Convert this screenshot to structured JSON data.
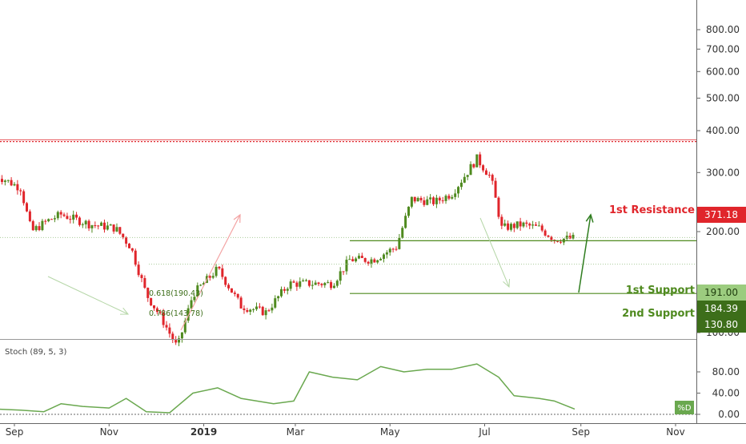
{
  "chart_data": {
    "type": "candlestick",
    "main_pane": {
      "y_axis": {
        "scale": "log",
        "ticks": [
          100,
          200,
          300,
          400,
          500,
          600,
          700,
          800
        ],
        "tick_labels": [
          "100.00",
          "200.00",
          "300.00",
          "400.00",
          "500.00",
          "600.00",
          "700.00",
          "800.00"
        ]
      },
      "price_series_approx": [
        [
          "2018-08-20",
          295
        ],
        [
          "2018-09-05",
          270
        ],
        [
          "2018-09-12",
          200
        ],
        [
          "2018-09-22",
          215
        ],
        [
          "2018-10-01",
          225
        ],
        [
          "2018-10-20",
          210
        ],
        [
          "2018-11-05",
          205
        ],
        [
          "2018-11-15",
          180
        ],
        [
          "2018-11-25",
          130
        ],
        [
          "2018-12-05",
          110
        ],
        [
          "2018-12-15",
          90
        ],
        [
          "2018-12-25",
          130
        ],
        [
          "2019-01-10",
          155
        ],
        [
          "2019-01-25",
          120
        ],
        [
          "2019-02-10",
          115
        ],
        [
          "2019-02-25",
          140
        ],
        [
          "2019-03-10",
          140
        ],
        [
          "2019-03-25",
          140
        ],
        [
          "2019-04-05",
          165
        ],
        [
          "2019-04-20",
          165
        ],
        [
          "2019-05-05",
          180
        ],
        [
          "2019-05-15",
          250
        ],
        [
          "2019-05-30",
          245
        ],
        [
          "2019-06-10",
          260
        ],
        [
          "2019-06-26",
          330
        ],
        [
          "2019-07-05",
          290
        ],
        [
          "2019-07-12",
          205
        ],
        [
          "2019-07-25",
          210
        ],
        [
          "2019-08-05",
          205
        ],
        [
          "2019-08-15",
          190
        ],
        [
          "2019-08-28",
          191
        ]
      ],
      "fib_labels": [
        "0.618(190.43)",
        "0.786(143.78)"
      ],
      "horizontal_levels": [
        {
          "label": "1st Resistance",
          "value": 371.18,
          "value_label": "371.18",
          "color": "#e0252b"
        },
        {
          "label": "1st Support",
          "value": 191.0,
          "value_label": "191.00",
          "color": "#4f8a1f"
        },
        {
          "label": "2nd Support",
          "value": 130.8,
          "value_label": "130.80",
          "color": "#4f8a1f"
        }
      ],
      "current_price_label": "184.39"
    },
    "indicator_pane": {
      "title": "Stoch (89, 5, 3)",
      "legend": "%D",
      "y_ticks": [
        0,
        40,
        80
      ],
      "tick_labels": [
        "0.00",
        "40.00",
        "80.00"
      ],
      "series_approx": [
        [
          "2018-08-20",
          10
        ],
        [
          "2018-09-05",
          8
        ],
        [
          "2018-09-20",
          5
        ],
        [
          "2018-10-01",
          20
        ],
        [
          "2018-10-15",
          15
        ],
        [
          "2018-11-01",
          12
        ],
        [
          "2018-11-12",
          30
        ],
        [
          "2018-11-25",
          5
        ],
        [
          "2018-12-10",
          3
        ],
        [
          "2018-12-25",
          40
        ],
        [
          "2019-01-10",
          50
        ],
        [
          "2019-01-25",
          30
        ],
        [
          "2019-02-15",
          20
        ],
        [
          "2019-02-28",
          25
        ],
        [
          "2019-03-10",
          80
        ],
        [
          "2019-03-25",
          70
        ],
        [
          "2019-04-10",
          65
        ],
        [
          "2019-04-25",
          90
        ],
        [
          "2019-05-10",
          80
        ],
        [
          "2019-05-25",
          85
        ],
        [
          "2019-06-10",
          85
        ],
        [
          "2019-06-26",
          95
        ],
        [
          "2019-07-10",
          70
        ],
        [
          "2019-07-20",
          35
        ],
        [
          "2019-08-05",
          30
        ],
        [
          "2019-08-15",
          25
        ],
        [
          "2019-08-28",
          10
        ]
      ]
    },
    "x_axis": {
      "tick_labels": [
        "Sep",
        "Nov",
        "2019",
        "Mar",
        "May",
        "Jul",
        "Sep",
        "Nov"
      ],
      "tick_dates": [
        "2018-09-01",
        "2018-11-01",
        "2019-01-01",
        "2019-03-01",
        "2019-05-01",
        "2019-07-01",
        "2019-09-01",
        "2019-11-01"
      ]
    },
    "colors": {
      "up": "#4f8a1f",
      "down": "#e0252b",
      "resistance": "#e0252b",
      "support": "#4f8a1f",
      "stoch": "#6aa84f",
      "arrow_red": "#f3a3a3",
      "arrow_green": "#b5d6a7",
      "arrow_dark_green": "#2f7d1f"
    },
    "grid": false
  }
}
